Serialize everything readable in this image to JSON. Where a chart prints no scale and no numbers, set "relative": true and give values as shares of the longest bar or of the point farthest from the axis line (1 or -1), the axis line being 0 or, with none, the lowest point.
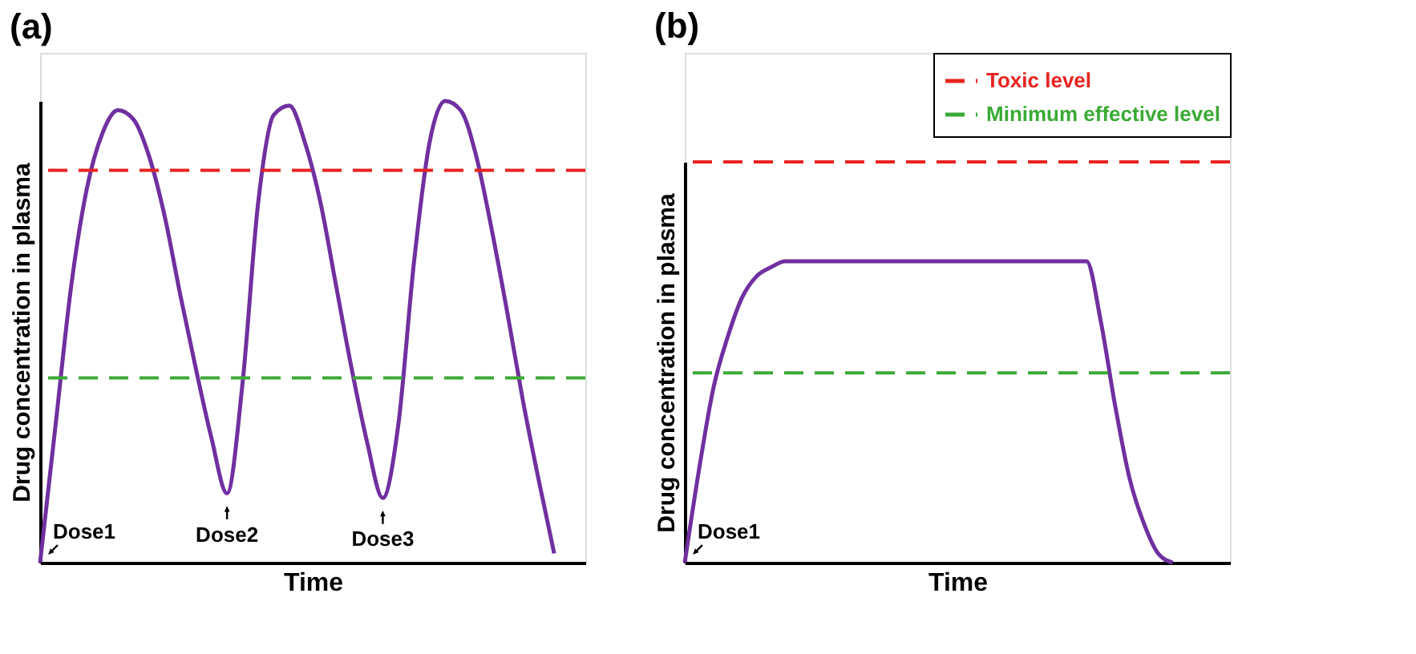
{
  "chart_data": [
    {
      "type": "line",
      "title": "(a)",
      "xlabel": "Time",
      "ylabel": "Drug concentration in plasma",
      "relative": true,
      "marker": "none",
      "categories": [
        null,
        null,
        null,
        null,
        null,
        null,
        null,
        null,
        null,
        null,
        null,
        null,
        null,
        null,
        null,
        null,
        null,
        null,
        null,
        null,
        null,
        null,
        null,
        null,
        null,
        null,
        null,
        null,
        null,
        null,
        null,
        null,
        null,
        null,
        null,
        null
      ],
      "series": [
        {
          "color": "#7030a0",
          "values": [
            0,
            0.3,
            0.6,
            0.81,
            0.93,
            0.98,
            0.96,
            0.88,
            0.75,
            0.58,
            0.42,
            0.27,
            0.15,
            0.39,
            0.78,
            0.97,
            0.99,
            0.91,
            0.78,
            0.6,
            0.42,
            0.26,
            0.14,
            0.3,
            0.65,
            0.91,
            1,
            0.98,
            0.88,
            0.72,
            0.54,
            0.35,
            0.18,
            0.02,
            null,
            null
          ]
        }
      ],
      "ref_lines": [
        {
          "axis": "y",
          "value": 0.85,
          "color": "#e8231f",
          "line_style": "dashed"
        },
        {
          "axis": "y",
          "value": 0.4,
          "color": "#3aaa35",
          "line_style": "dashed"
        }
      ],
      "annotations": [
        "Dose1",
        "Dose2",
        "Dose3"
      ]
    },
    {
      "type": "line",
      "title": "(b)",
      "xlabel": "Time",
      "ylabel": "Drug concentration in plasma",
      "relative": true,
      "marker": "none",
      "legend": "top right",
      "categories": [
        null,
        null,
        null,
        null,
        null,
        null,
        null,
        null,
        null,
        null,
        null,
        null,
        null,
        null,
        null,
        null,
        null,
        null,
        null,
        null,
        null,
        null,
        null,
        null,
        null,
        null,
        null,
        null,
        null,
        null,
        null,
        null,
        null,
        null,
        null,
        null,
        null,
        null,
        null
      ],
      "series": [
        {
          "color": "#7030a0",
          "values": [
            0,
            0.31,
            0.58,
            0.75,
            0.88,
            0.95,
            0.98,
            1,
            1,
            1,
            1,
            1,
            1,
            1,
            1,
            1,
            1,
            1,
            1,
            1,
            1,
            1,
            1,
            1,
            1,
            1,
            1,
            1,
            1,
            0.8,
            0.52,
            0.28,
            0.13,
            0.03,
            0,
            null,
            null,
            null,
            null
          ]
        }
      ],
      "ref_lines": [
        {
          "axis": "y",
          "value": 1.33,
          "label": "Toxic level",
          "color": "#e8231f",
          "line_style": "dashed"
        },
        {
          "axis": "y",
          "value": 0.63,
          "label": "Minimum effective level",
          "color": "#3aaa35",
          "line_style": "dashed"
        }
      ],
      "annotations": [
        "Dose1"
      ]
    }
  ]
}
